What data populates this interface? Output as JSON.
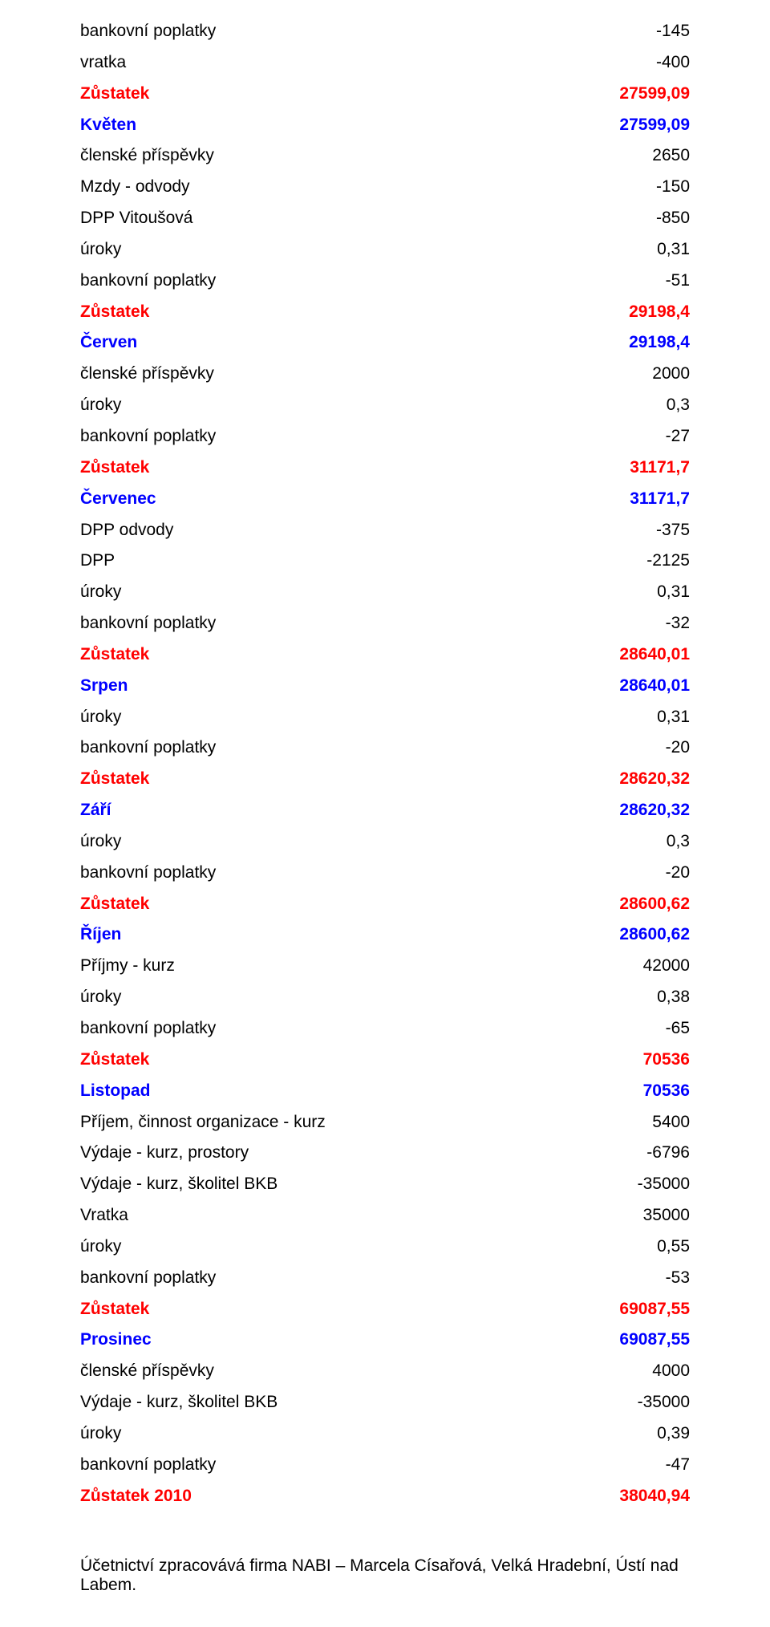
{
  "colors": {
    "black": "#000000",
    "red": "#ff0000",
    "blue": "#0000ff",
    "background": "#ffffff"
  },
  "typography": {
    "font_family": "Arial",
    "font_size_pt": 16,
    "line_height": 1.85
  },
  "rows": [
    {
      "label": "bankovní poplatky",
      "value": "-145",
      "style": "black"
    },
    {
      "label": "vratka",
      "value": "-400",
      "style": "black"
    },
    {
      "label": "Zůstatek",
      "value": "27599,09",
      "style": "red"
    },
    {
      "label": "Květen",
      "value": "27599,09",
      "style": "blue"
    },
    {
      "label": "členské příspěvky",
      "value": "2650",
      "style": "black"
    },
    {
      "label": "Mzdy - odvody",
      "value": "-150",
      "style": "black"
    },
    {
      "label": "DPP Vitoušová",
      "value": "-850",
      "style": "black"
    },
    {
      "label": "úroky",
      "value": "0,31",
      "style": "black"
    },
    {
      "label": "bankovní poplatky",
      "value": "-51",
      "style": "black"
    },
    {
      "label": "Zůstatek",
      "value": "29198,4",
      "style": "red"
    },
    {
      "label": "Červen",
      "value": "29198,4",
      "style": "blue"
    },
    {
      "label": "členské příspěvky",
      "value": "2000",
      "style": "black"
    },
    {
      "label": "úroky",
      "value": "0,3",
      "style": "black"
    },
    {
      "label": "bankovní poplatky",
      "value": "-27",
      "style": "black"
    },
    {
      "label": "Zůstatek",
      "value": "31171,7",
      "style": "red"
    },
    {
      "label": "Červenec",
      "value": "31171,7",
      "style": "blue"
    },
    {
      "label": "DPP odvody",
      "value": "-375",
      "style": "black"
    },
    {
      "label": "DPP",
      "value": "-2125",
      "style": "black"
    },
    {
      "label": "úroky",
      "value": "0,31",
      "style": "black"
    },
    {
      "label": "bankovní poplatky",
      "value": "-32",
      "style": "black"
    },
    {
      "label": "Zůstatek",
      "value": "28640,01",
      "style": "red"
    },
    {
      "label": "Srpen",
      "value": "28640,01",
      "style": "blue"
    },
    {
      "label": "úroky",
      "value": "0,31",
      "style": "black"
    },
    {
      "label": "bankovní poplatky",
      "value": "-20",
      "style": "black"
    },
    {
      "label": "Zůstatek",
      "value": "28620,32",
      "style": "red"
    },
    {
      "label": "Září",
      "value": "28620,32",
      "style": "blue"
    },
    {
      "label": "úroky",
      "value": "0,3",
      "style": "black"
    },
    {
      "label": "bankovní poplatky",
      "value": "-20",
      "style": "black"
    },
    {
      "label": "Zůstatek",
      "value": "28600,62",
      "style": "red"
    },
    {
      "label": "Říjen",
      "value": "28600,62",
      "style": "blue"
    },
    {
      "label": "Příjmy - kurz",
      "value": "42000",
      "style": "black"
    },
    {
      "label": "úroky",
      "value": "0,38",
      "style": "black"
    },
    {
      "label": "bankovní poplatky",
      "value": "-65",
      "style": "black"
    },
    {
      "label": "Zůstatek",
      "value": "70536",
      "style": "red"
    },
    {
      "label": "Listopad",
      "value": "70536",
      "style": "blue"
    },
    {
      "label": "Příjem, činnost organizace - kurz",
      "value": "5400",
      "style": "black"
    },
    {
      "label": "Výdaje - kurz, prostory",
      "value": "-6796",
      "style": "black"
    },
    {
      "label": "Výdaje - kurz, školitel BKB",
      "value": "-35000",
      "style": "black"
    },
    {
      "label": "Vratka",
      "value": "35000",
      "style": "black"
    },
    {
      "label": "úroky",
      "value": "0,55",
      "style": "black"
    },
    {
      "label": "bankovní poplatky",
      "value": "-53",
      "style": "black"
    },
    {
      "label": "Zůstatek",
      "value": "69087,55",
      "style": "red"
    },
    {
      "label": "Prosinec",
      "value": "69087,55",
      "style": "blue"
    },
    {
      "label": "členské příspěvky",
      "value": "4000",
      "style": "black"
    },
    {
      "label": "Výdaje - kurz, školitel BKB",
      "value": "-35000",
      "style": "black"
    },
    {
      "label": "úroky",
      "value": "0,39",
      "style": "black"
    },
    {
      "label": "bankovní poplatky",
      "value": "-47",
      "style": "black"
    },
    {
      "label": "Zůstatek 2010",
      "value": "38040,94",
      "style": "red"
    }
  ],
  "footer": "Účetnictví zpracovává firma NABI – Marcela Císařová, Velká Hradební, Ústí nad Labem."
}
